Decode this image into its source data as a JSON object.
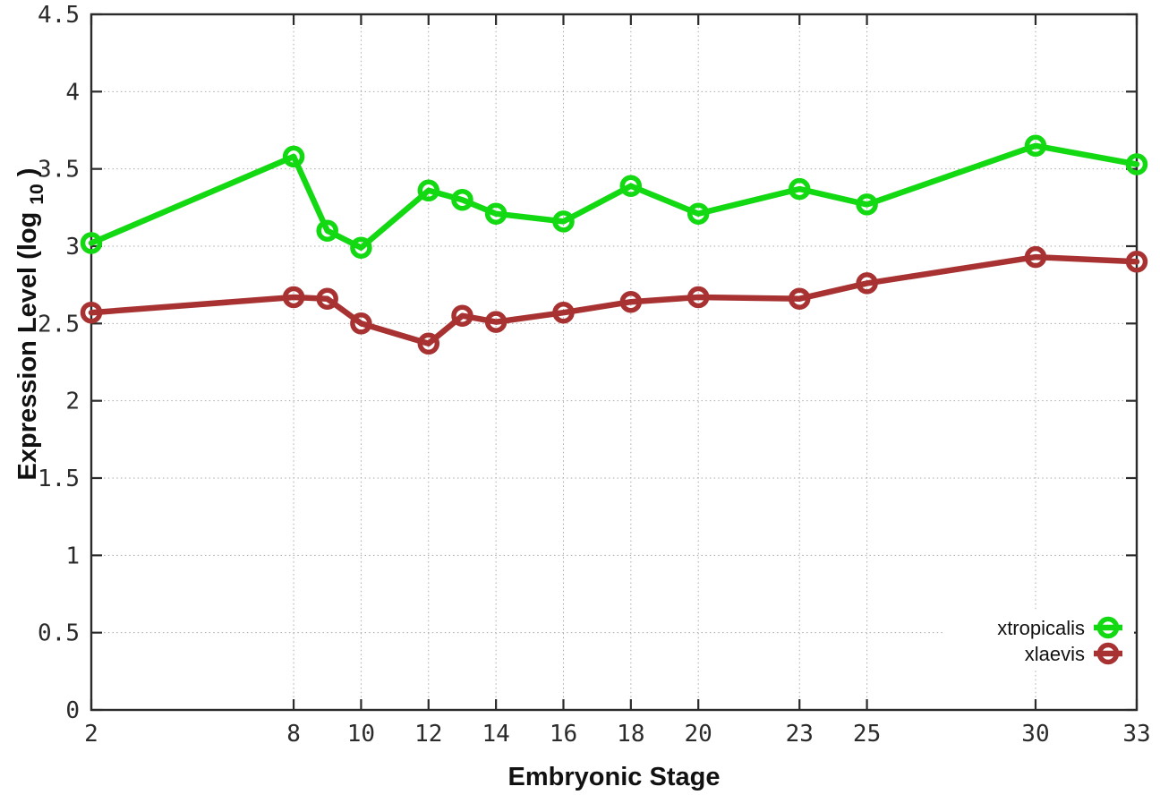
{
  "window": {
    "background": "#ffffff"
  },
  "style": {
    "grid_color": "#a9a9a9",
    "axis_color": "#2b2b2b",
    "text_color": "#2b2b2b",
    "legend_background": "#ffffff"
  },
  "chart_data": {
    "type": "line",
    "title": "",
    "xlabel": "Embryonic Stage",
    "ylabel": "Expression Level (log10)",
    "ylabel_parts": {
      "prefix": "Expression Level (log",
      "sub": "10",
      "suffix": ")"
    },
    "x": [
      2,
      8,
      9,
      10,
      12,
      13,
      14,
      16,
      18,
      20,
      23,
      25,
      30,
      33
    ],
    "xlim": [
      2,
      33
    ],
    "ylim": [
      0,
      4.5
    ],
    "xtick_values": [
      2,
      8,
      10,
      12,
      14,
      16,
      18,
      20,
      23,
      25,
      30,
      33
    ],
    "xtick_labels": [
      "2",
      "8",
      "10",
      "12",
      "14",
      "16",
      "18",
      "20",
      "23",
      "25",
      "30",
      "33"
    ],
    "ytick_values": [
      0,
      0.5,
      1,
      1.5,
      2,
      2.5,
      3,
      3.5,
      4,
      4.5
    ],
    "ytick_labels": [
      "0",
      "0.5",
      "1",
      "1.5",
      "2",
      "2.5",
      "3",
      "3.5",
      "4",
      "4.5"
    ],
    "grid": true,
    "legend_position": "inside-bottom-right",
    "marker": "open-circle",
    "series": [
      {
        "name": "xtropicalis",
        "color": "#12d912",
        "values": [
          3.02,
          3.58,
          3.1,
          2.99,
          3.36,
          3.3,
          3.21,
          3.16,
          3.39,
          3.21,
          3.37,
          3.27,
          3.65,
          3.53
        ]
      },
      {
        "name": "xlaevis",
        "color": "#a83232",
        "values": [
          2.57,
          2.67,
          2.66,
          2.5,
          2.37,
          2.55,
          2.51,
          2.57,
          2.64,
          2.67,
          2.66,
          2.76,
          2.93,
          2.9
        ]
      }
    ]
  }
}
